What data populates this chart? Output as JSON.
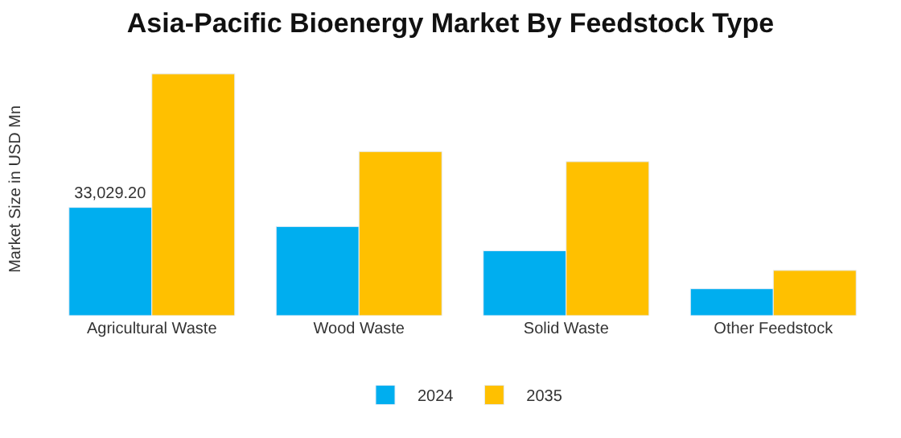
{
  "chart_data": {
    "type": "bar",
    "title": "Asia-Pacific Bioenergy Market By Feedstock Type",
    "ylabel": "Market Size in USD Mn",
    "categories": [
      "Agricultural Waste",
      "Wood Waste",
      "Solid Waste",
      "Other Feedstock"
    ],
    "legend": "bottom",
    "series": [
      {
        "name": "2024",
        "color": "#00aeef",
        "values": [
          33029.2,
          27200,
          19800,
          8200
        ],
        "value_labels": [
          "33,029.20",
          null,
          null,
          null
        ]
      },
      {
        "name": "2035",
        "color": "#ffc000",
        "values": [
          73800,
          50100,
          47000,
          13800
        ]
      }
    ]
  }
}
